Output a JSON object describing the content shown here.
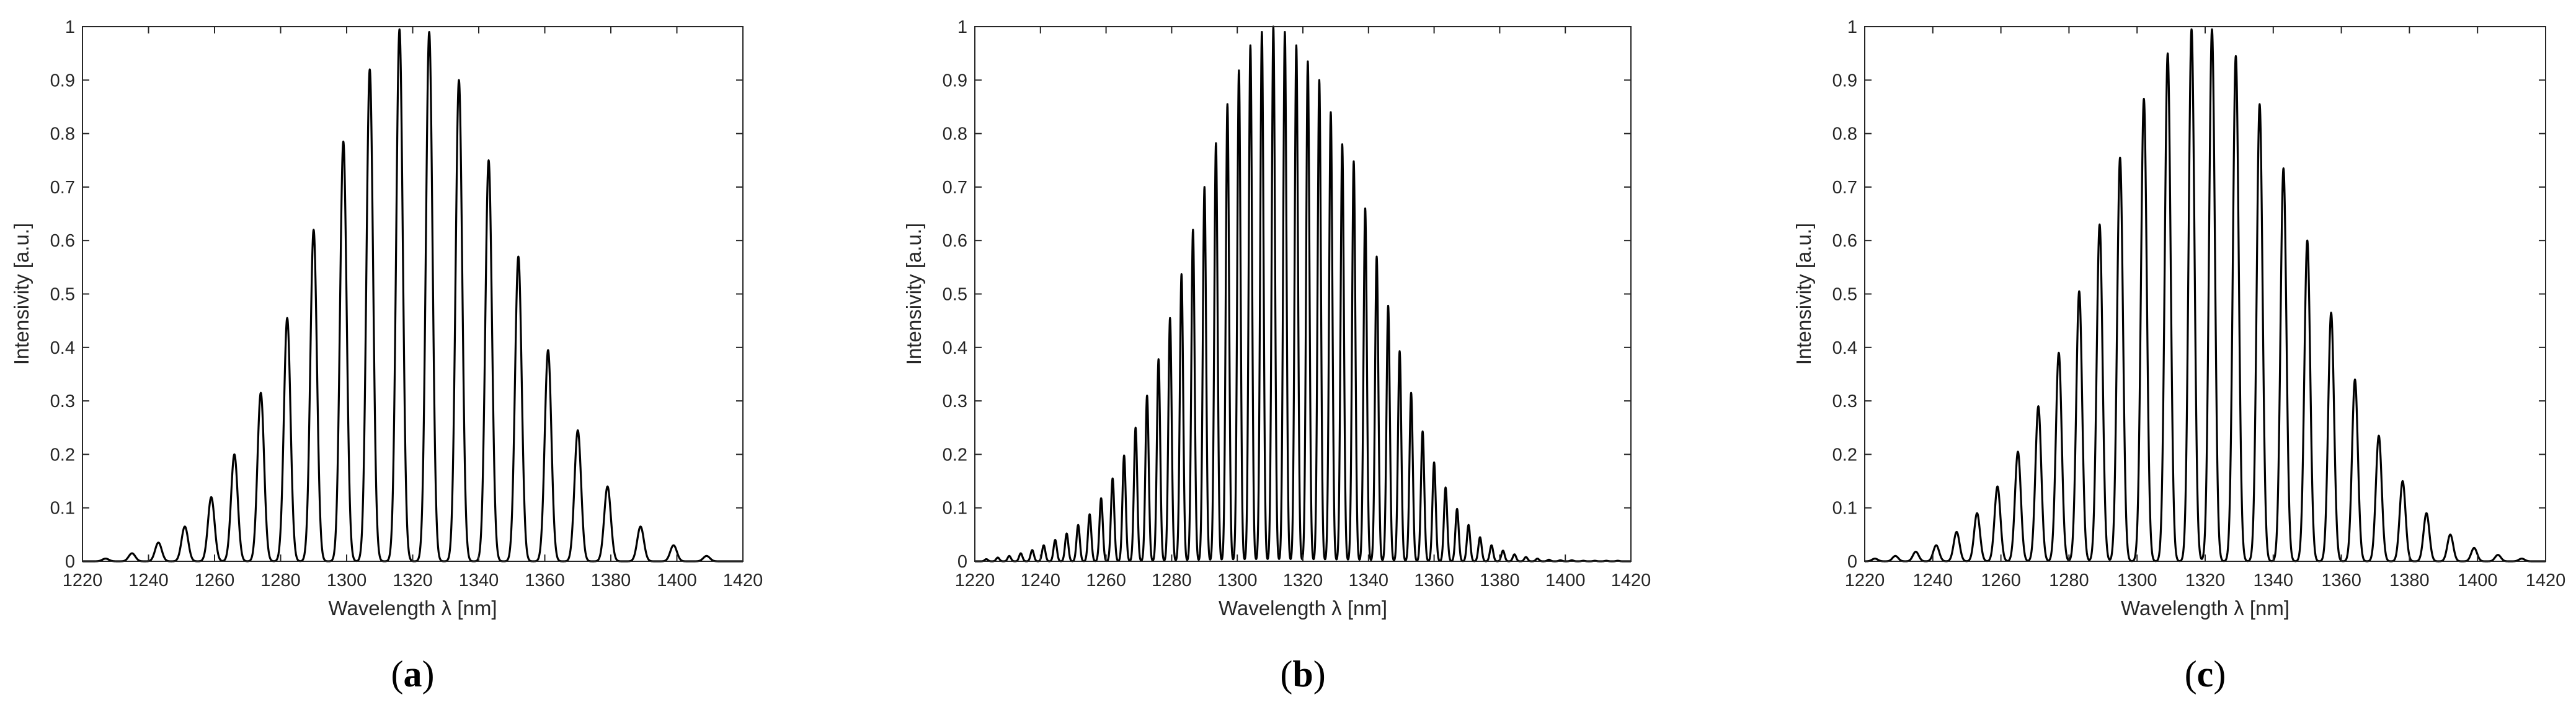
{
  "figure": {
    "panels": [
      {
        "panel_label": "a"
      },
      {
        "panel_label": "b"
      },
      {
        "panel_label": "c"
      }
    ]
  },
  "chart_data": [
    {
      "type": "line",
      "xlabel": "Wavelength λ [nm]",
      "ylabel": "Intensivity [a.u.]",
      "xlim": [
        1220,
        1420
      ],
      "ylim": [
        0,
        1
      ],
      "xticks": [
        1220,
        1240,
        1260,
        1280,
        1300,
        1320,
        1340,
        1360,
        1380,
        1400,
        1420
      ],
      "yticks": [
        0,
        0.1,
        0.2,
        0.3,
        0.4,
        0.5,
        0.6,
        0.7,
        0.8,
        0.9,
        1
      ],
      "grid": false,
      "line_color": "#000000",
      "fringe_peaks": {
        "x": [
          1227,
          1235,
          1243,
          1251,
          1259,
          1266,
          1274,
          1282,
          1290,
          1299,
          1307,
          1316,
          1325,
          1334,
          1343,
          1352,
          1361,
          1370,
          1379,
          1389,
          1399,
          1409
        ],
        "y": [
          0.005,
          0.015,
          0.035,
          0.065,
          0.12,
          0.2,
          0.315,
          0.455,
          0.62,
          0.785,
          0.92,
          0.995,
          0.99,
          0.9,
          0.75,
          0.57,
          0.395,
          0.245,
          0.14,
          0.065,
          0.03,
          0.01
        ]
      }
    },
    {
      "type": "line",
      "xlabel": "Wavelength λ [nm]",
      "ylabel": "Intensivity [a.u.]",
      "xlim": [
        1220,
        1420
      ],
      "ylim": [
        0,
        1
      ],
      "xticks": [
        1220,
        1240,
        1260,
        1280,
        1300,
        1320,
        1340,
        1360,
        1380,
        1400,
        1420
      ],
      "yticks": [
        0,
        0.1,
        0.2,
        0.3,
        0.4,
        0.5,
        0.6,
        0.7,
        0.8,
        0.9,
        1
      ],
      "grid": false,
      "line_color": "#000000",
      "fringe_peaks": {
        "x": [
          1223.5,
          1227,
          1230.5,
          1234,
          1237.5,
          1241,
          1244.5,
          1248,
          1251.5,
          1255,
          1258.5,
          1262,
          1265.5,
          1269,
          1272.5,
          1276,
          1279.5,
          1283,
          1286.5,
          1290,
          1293.5,
          1297,
          1300.5,
          1304,
          1307.5,
          1311,
          1314.5,
          1318,
          1321.5,
          1325,
          1328.5,
          1332,
          1335.5,
          1339,
          1342.5,
          1346,
          1349.5,
          1353,
          1356.5,
          1360,
          1363.5,
          1367,
          1370.5,
          1374,
          1377.5,
          1381,
          1384.5,
          1388,
          1391.5,
          1395,
          1398.5,
          1402,
          1405.5,
          1409,
          1412.5,
          1416
        ],
        "y": [
          0.004,
          0.007,
          0.01,
          0.015,
          0.021,
          0.03,
          0.04,
          0.052,
          0.068,
          0.088,
          0.118,
          0.155,
          0.198,
          0.25,
          0.31,
          0.378,
          0.455,
          0.537,
          0.62,
          0.7,
          0.782,
          0.855,
          0.918,
          0.965,
          0.99,
          1.0,
          0.99,
          0.965,
          0.935,
          0.9,
          0.84,
          0.78,
          0.748,
          0.66,
          0.57,
          0.478,
          0.393,
          0.315,
          0.243,
          0.185,
          0.138,
          0.098,
          0.068,
          0.045,
          0.03,
          0.02,
          0.013,
          0.008,
          0.005,
          0.003,
          0.002,
          0.002,
          0.001,
          0.001,
          0.001,
          0.001
        ]
      }
    },
    {
      "type": "line",
      "xlabel": "Wavelength λ [nm]",
      "ylabel": "Intensivity [a.u.]",
      "xlim": [
        1220,
        1420
      ],
      "ylim": [
        0,
        1
      ],
      "xticks": [
        1220,
        1240,
        1260,
        1280,
        1300,
        1320,
        1340,
        1360,
        1380,
        1400,
        1420
      ],
      "yticks": [
        0,
        0.1,
        0.2,
        0.3,
        0.4,
        0.5,
        0.6,
        0.7,
        0.8,
        0.9,
        1
      ],
      "grid": false,
      "line_color": "#000000",
      "fringe_peaks": {
        "x": [
          1223,
          1229,
          1235,
          1241,
          1247,
          1253,
          1259,
          1265,
          1271,
          1277,
          1283,
          1289,
          1295,
          1302,
          1309,
          1316,
          1322,
          1329,
          1336,
          1343,
          1350,
          1357,
          1364,
          1371,
          1378,
          1385,
          1392,
          1399,
          1406,
          1413
        ],
        "y": [
          0.005,
          0.01,
          0.018,
          0.03,
          0.055,
          0.09,
          0.14,
          0.205,
          0.29,
          0.39,
          0.505,
          0.63,
          0.755,
          0.865,
          0.95,
          0.995,
          0.995,
          0.945,
          0.855,
          0.735,
          0.6,
          0.465,
          0.34,
          0.235,
          0.15,
          0.09,
          0.05,
          0.025,
          0.012,
          0.005
        ]
      }
    }
  ]
}
